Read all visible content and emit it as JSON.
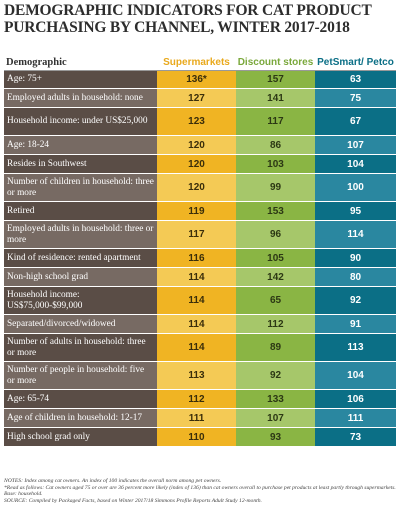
{
  "title": "DEMOGRAPHIC INDICATORS FOR CAT PRODUCT PURCHASING BY CHANNEL, WINTER 2017-2018",
  "chart_data": {
    "type": "table",
    "title": "DEMOGRAPHIC INDICATORS FOR CAT PRODUCT PURCHASING BY CHANNEL, WINTER 2017-2018",
    "header_label": "Demographic",
    "columns": [
      "Supermarkets",
      "Discount stores",
      "PetSmart/ Petco"
    ],
    "rows": [
      {
        "label": "Age: 75+",
        "values": [
          "136*",
          "157",
          "63"
        ]
      },
      {
        "label": "Employed adults in household: none",
        "values": [
          "127",
          "141",
          "75"
        ]
      },
      {
        "label": "Household income: under US$25,000",
        "values": [
          "123",
          "117",
          "67"
        ]
      },
      {
        "label": "Age: 18-24",
        "values": [
          "120",
          "86",
          "107"
        ]
      },
      {
        "label": "Resides in Southwest",
        "values": [
          "120",
          "103",
          "104"
        ]
      },
      {
        "label": "Number of children in household: three or more",
        "values": [
          "120",
          "99",
          "100"
        ]
      },
      {
        "label": "Retired",
        "values": [
          "119",
          "153",
          "95"
        ]
      },
      {
        "label": "Employed adults in household: three or more",
        "values": [
          "117",
          "96",
          "114"
        ]
      },
      {
        "label": "Kind of residence: rented apartment",
        "values": [
          "116",
          "105",
          "90"
        ]
      },
      {
        "label": "Non-high school grad",
        "values": [
          "114",
          "142",
          "80"
        ]
      },
      {
        "label": "Household income: US$75,000-$99,000",
        "values": [
          "114",
          "65",
          "92"
        ]
      },
      {
        "label": "Separated/divorced/widowed",
        "values": [
          "114",
          "112",
          "91"
        ]
      },
      {
        "label": "Number of adults in household: three or more",
        "values": [
          "114",
          "89",
          "113"
        ]
      },
      {
        "label": "Number of people in household: five or more",
        "values": [
          "113",
          "92",
          "104"
        ]
      },
      {
        "label": "Age: 65-74",
        "values": [
          "112",
          "133",
          "106"
        ]
      },
      {
        "label": "Age of children in household: 12-17",
        "values": [
          "111",
          "107",
          "111"
        ]
      },
      {
        "label": "High school grad only",
        "values": [
          "110",
          "93",
          "73"
        ]
      }
    ]
  },
  "colors": {
    "supermarkets": "#f0b423",
    "discount": "#8ab544",
    "petsmart": "#0b6f86",
    "label_bg": "#5a4d46"
  },
  "notes": [
    "NOTES: Index among cat owners. An index of 100 indicates the overall norm among pet owners.",
    "*Read as follows: Cat owners aged 75 or over are 36 percent more likely (index of 136) than cat owners overall to purchase pet products at least partly through supermarkets.",
    "Base: household.",
    "SOURCE: Compiled by Packaged Facts, based on Winter 2017/18 Simmons Profile Reports Adult Study 12-month."
  ]
}
